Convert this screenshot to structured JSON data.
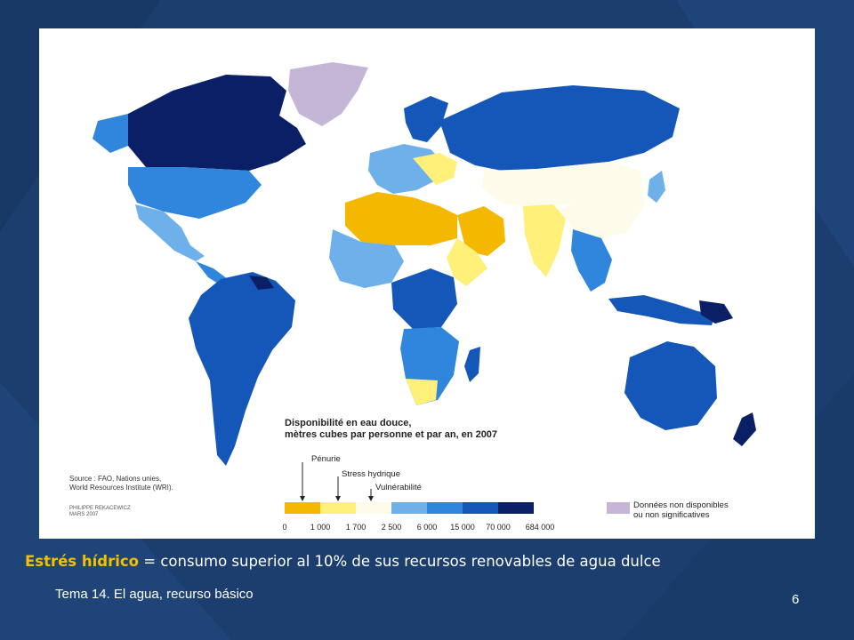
{
  "slide": {
    "background_color": "#1b3e6e",
    "definition_term": "Estrés hídrico",
    "definition_rest": " = consumo superior al 10% de sus recursos renovables de agua dulce",
    "footer": "Tema 14. El agua, recurso básico",
    "page_number": "6"
  },
  "map": {
    "legend_title_line1": "Disponibilité en eau douce,",
    "legend_title_line2": "mètres cubes par personne et par an, en 2007",
    "source_line1": "Source : FAO, Nations unies,",
    "source_line2": "World Resources Institute (WRI).",
    "credit_line1": "PHILIPPE REKACEWICZ",
    "credit_line2": "MARS 2007",
    "markers": {
      "penurie": "Pénurie",
      "stress": "Stress hydrique",
      "vulnerabilite": "Vulnérabilité"
    },
    "scale_ticks": [
      "0",
      "1 000",
      "1 700",
      "2 500",
      "6 000",
      "15 000",
      "70 000",
      "684 000"
    ],
    "scale_colors": [
      "#f5b800",
      "#fff07a",
      "#fdfbea",
      "#6eb0ea",
      "#2f86dc",
      "#1557b8",
      "#0a1f66"
    ],
    "nodata_label_line1": "Données non disponibles",
    "nodata_label_line2": "ou non significatives",
    "nodata_color": "#c5b6d8"
  }
}
